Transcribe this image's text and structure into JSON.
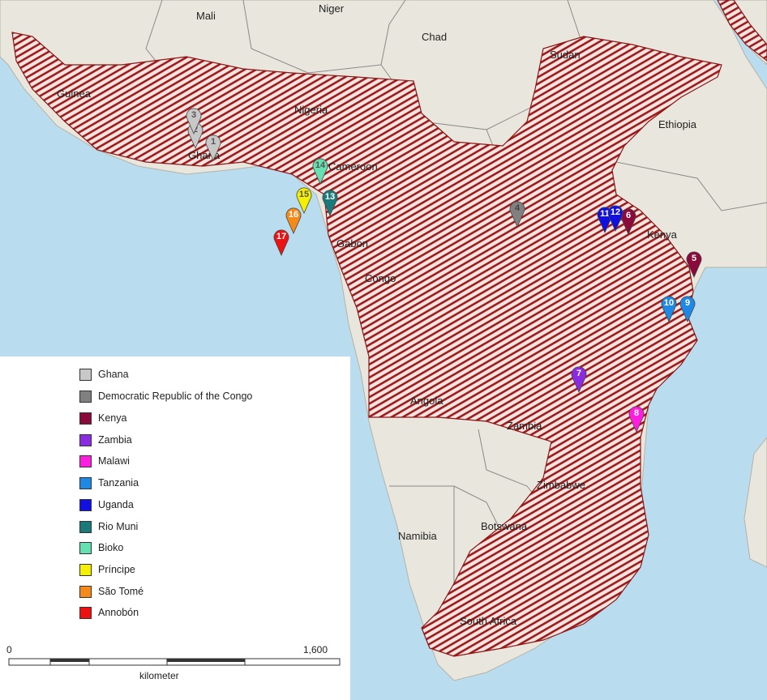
{
  "countries": [
    {
      "id": "mali",
      "name": "Mali"
    },
    {
      "id": "niger",
      "name": "Niger"
    },
    {
      "id": "chad",
      "name": "Chad"
    },
    {
      "id": "sudan",
      "name": "Sudan"
    },
    {
      "id": "guinea",
      "name": "Guinea"
    },
    {
      "id": "nigeria",
      "name": "Nigeria"
    },
    {
      "id": "ethiopia",
      "name": "Ethiopia"
    },
    {
      "id": "ghana",
      "name": "Ghana"
    },
    {
      "id": "cameroon",
      "name": "Cameroon"
    },
    {
      "id": "gabon",
      "name": "Gabon"
    },
    {
      "id": "congo",
      "name": "Congo"
    },
    {
      "id": "kenya",
      "name": "Kenya"
    },
    {
      "id": "angola",
      "name": "Angola"
    },
    {
      "id": "zambia",
      "name": "Zambia"
    },
    {
      "id": "zimbabwe",
      "name": "Zimbabwe"
    },
    {
      "id": "namibia",
      "name": "Namibia"
    },
    {
      "id": "botswana",
      "name": "Botswana"
    },
    {
      "id": "south-africa",
      "name": "South Africa"
    }
  ],
  "legend": [
    {
      "label": "Ghana",
      "color": "#c8c8c8"
    },
    {
      "label": "Democratic Republic of the Congo",
      "color": "#808080"
    },
    {
      "label": "Kenya",
      "color": "#8b0a3c"
    },
    {
      "label": "Zambia",
      "color": "#8a2be2"
    },
    {
      "label": "Malawi",
      "color": "#ff1ee0"
    },
    {
      "label": "Tanzania",
      "color": "#1e88e5"
    },
    {
      "label": "Uganda",
      "color": "#1010e0"
    },
    {
      "label": "Rio Muni",
      "color": "#1a7a7a"
    },
    {
      "label": "Bioko",
      "color": "#66e0b0"
    },
    {
      "label": "Príncipe",
      "color": "#f5f000"
    },
    {
      "label": "São Tomé",
      "color": "#f58a1a"
    },
    {
      "label": "Annobón",
      "color": "#ee1111"
    }
  ],
  "markers": [
    {
      "num": "1",
      "group": "Ghana",
      "color": "#c8c8c8",
      "text_color": "#555555"
    },
    {
      "num": "2",
      "group": "Ghana",
      "color": "#c8c8c8",
      "text_color": "#555555"
    },
    {
      "num": "3",
      "group": "Ghana",
      "color": "#c8c8c8",
      "text_color": "#555555"
    },
    {
      "num": "4",
      "group": "Democratic Republic of the Congo",
      "color": "#808080",
      "text_color": "#444444"
    },
    {
      "num": "5",
      "group": "Kenya",
      "color": "#8b0a3c",
      "text_color": "#ffffff"
    },
    {
      "num": "6",
      "group": "Kenya",
      "color": "#8b0a3c",
      "text_color": "#ffffff"
    },
    {
      "num": "7",
      "group": "Zambia",
      "color": "#8a2be2",
      "text_color": "#ffffff"
    },
    {
      "num": "8",
      "group": "Malawi",
      "color": "#ff1ee0",
      "text_color": "#ffffff"
    },
    {
      "num": "9",
      "group": "Tanzania",
      "color": "#1e88e5",
      "text_color": "#ffffff"
    },
    {
      "num": "10",
      "group": "Tanzania",
      "color": "#1e88e5",
      "text_color": "#ffffff"
    },
    {
      "num": "11",
      "group": "Uganda",
      "color": "#1010e0",
      "text_color": "#ffffff"
    },
    {
      "num": "12",
      "group": "Uganda",
      "color": "#1010e0",
      "text_color": "#ffffff"
    },
    {
      "num": "13",
      "group": "Rio Muni",
      "color": "#1a7a7a",
      "text_color": "#ffffff"
    },
    {
      "num": "14",
      "group": "Bioko",
      "color": "#66e0b0",
      "text_color": "#555555"
    },
    {
      "num": "15",
      "group": "Príncipe",
      "color": "#f5f000",
      "text_color": "#555555"
    },
    {
      "num": "16",
      "group": "São Tomé",
      "color": "#f58a1a",
      "text_color": "#ffffff"
    },
    {
      "num": "17",
      "group": "Annobón",
      "color": "#ee1111",
      "text_color": "#ffffff"
    }
  ],
  "scale": {
    "start": "0",
    "end": "1,600",
    "unit": "kilometer"
  },
  "colors": {
    "ocean": "#b9dcef",
    "land": "#e9e7dd",
    "range": "#9e1b1b"
  }
}
